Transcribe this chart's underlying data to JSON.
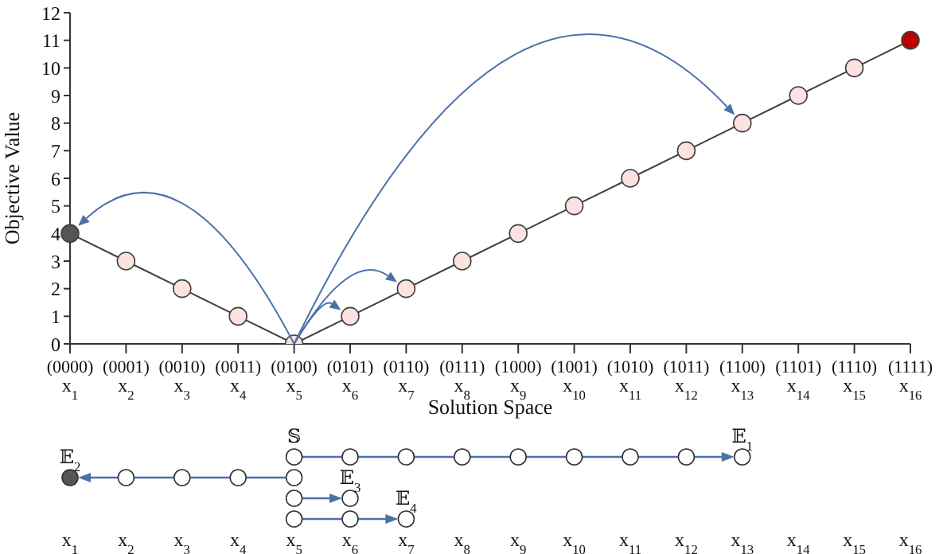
{
  "chart_data": {
    "type": "line",
    "xlabel": "Solution Space",
    "ylabel": "Objective Value",
    "categories": [
      "(0000) x$_{1}$",
      "(0001) x$_{2}$",
      "(0010) x$_{3}$",
      "(0011) x$_{4}$",
      "(0100) x$_{5}$",
      "(0101) x$_{6}$",
      "(0110) x$_{7}$",
      "(0111) x$_{8}$",
      "(1000) x$_{9}$",
      "(1001) x$_{10}$",
      "(1010) x$_{11}$",
      "(1011) x$_{12}$",
      "(1100) x$_{13}$",
      "(1101) x$_{14}$",
      "(1110) x$_{15}$",
      "(1111) x$_{16}$"
    ],
    "series": [
      {
        "color": "#404040",
        "values": [
          4,
          3,
          2,
          1,
          0,
          1,
          2,
          3,
          4,
          5,
          6,
          7,
          8,
          9,
          10,
          11
        ],
        "colors": [
          "#555555",
          "#fde2e2",
          "#fde2e2",
          "#fde2e2",
          "#fde2e2",
          "#fde2e2",
          "#fde2e2",
          "#fde2e2",
          "#fde2e2",
          "#fde2e2",
          "#fde2e2",
          "#fde2e2",
          "#fde2e2",
          "#fde2e2",
          "#fde2e2",
          "#c00000"
        ]
      }
    ],
    "ylim": [
      0,
      12
    ],
    "yticks": [
      0,
      1,
      2,
      3,
      4,
      5,
      6,
      7,
      8,
      9,
      10,
      11,
      12
    ],
    "marker": "circle",
    "line_style": "solid",
    "annotations": [
      "𝕊",
      "𝔼$_{1}$",
      "𝔼$_{2}$",
      "𝔼$_{3}$",
      "𝔼$_{4}$",
      "x$_{1}$",
      "x$_{2}$",
      "x$_{3}$",
      "x$_{4}$",
      "x$_{5}$",
      "x$_{6}$",
      "x$_{7}$",
      "x$_{8}$",
      "x$_{9}$",
      "x$_{10}$",
      "x$_{11}$",
      "x$_{12}$",
      "x$_{13}$",
      "x$_{14}$",
      "x$_{15}$",
      "x$_{16}$"
    ]
  }
}
